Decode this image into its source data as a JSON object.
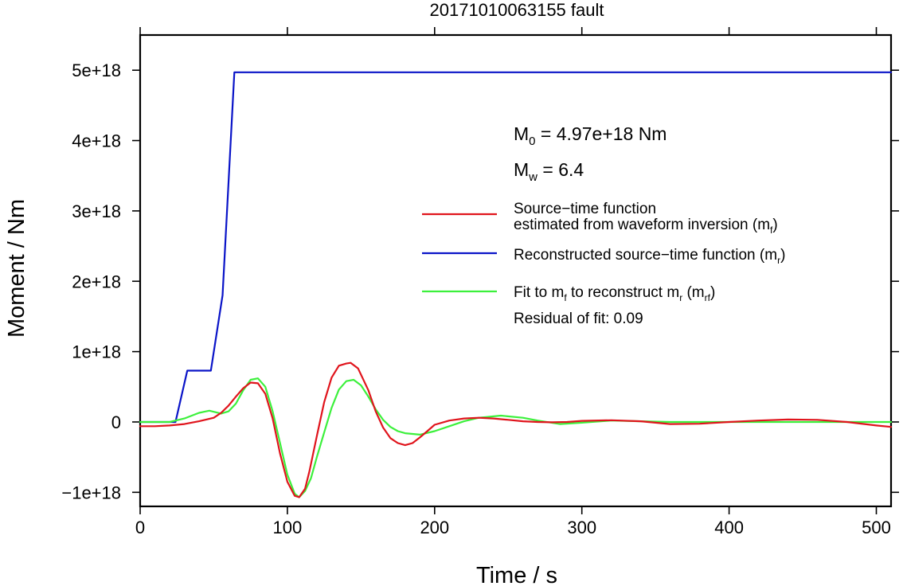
{
  "chart_data": {
    "type": "line",
    "title": "20171010063155 fault",
    "xlabel": "Time / s",
    "ylabel": "Moment / Nm",
    "xlim": [
      0,
      510
    ],
    "ylim": [
      -1.2e+18,
      5.5e+18
    ],
    "xticks": [
      0,
      100,
      200,
      300,
      400,
      500
    ],
    "xtick_labels": [
      "0",
      "100",
      "200",
      "300",
      "400",
      "500"
    ],
    "yticks": [
      -1e+18,
      0,
      1e+18,
      2e+18,
      3e+18,
      4e+18,
      5e+18
    ],
    "ytick_labels": [
      "−1e+18",
      "0",
      "1e+18",
      "2e+18",
      "3e+18",
      "4e+18",
      "5e+18"
    ],
    "grid": false,
    "legend_position": "right",
    "annotations": {
      "m0": {
        "symbol": "M",
        "sub": "0",
        "text": " = 4.97e+18 Nm"
      },
      "mw": {
        "symbol": "M",
        "sub": "w",
        "text": " = 6.4"
      },
      "residual": "Residual of fit: 0.09"
    },
    "series": [
      {
        "name_line1": "Source−time function",
        "name_line2": "estimated from waveform inversion (m",
        "name_sub": "f",
        "name_tail": ")",
        "color": "#e0141c",
        "x": [
          0,
          10,
          20,
          30,
          40,
          50,
          55,
          60,
          65,
          70,
          75,
          80,
          85,
          90,
          95,
          100,
          105,
          108,
          112,
          115,
          120,
          125,
          130,
          135,
          140,
          143,
          148,
          155,
          160,
          165,
          170,
          175,
          180,
          185,
          190,
          195,
          200,
          210,
          220,
          230,
          240,
          250,
          260,
          270,
          280,
          290,
          300,
          320,
          340,
          360,
          380,
          400,
          420,
          440,
          460,
          480,
          500,
          510
        ],
        "y": [
          -6e+16,
          -6e+16,
          -5e+16,
          -3e+16,
          1e+16,
          6e+16,
          1.3e+17,
          2.3e+17,
          3.6e+17,
          4.8e+17,
          5.6e+17,
          5.5e+17,
          4e+17,
          5e+16,
          -4.5e+17,
          -8.5e+17,
          -1.05e+18,
          -1.07e+18,
          -9.5e+17,
          -7e+17,
          -2e+17,
          2.8e+17,
          6.3e+17,
          8e+17,
          8.3e+17,
          8.4e+17,
          7.6e+17,
          4.5e+17,
          1.5e+17,
          -8e+16,
          -2.3e+17,
          -3e+17,
          -3.3e+17,
          -3e+17,
          -2.2e+17,
          -1.3e+17,
          -4e+16,
          2e+16,
          5e+16,
          6e+16,
          5e+16,
          3e+16,
          1e+16,
          0,
          -5000000000000000.0,
          0,
          1.5e+16,
          2.5e+16,
          1e+16,
          -3e+16,
          -2.5e+16,
          0,
          2e+16,
          3.5e+16,
          3e+16,
          0,
          -5e+16,
          -7e+16
        ]
      },
      {
        "name_line1": "Reconstructed source−time function (m",
        "name_sub": "r",
        "name_tail": ")",
        "color": "#0a14c8",
        "x": [
          0,
          24,
          32,
          48,
          56,
          64,
          510
        ],
        "y": [
          0,
          0,
          7.3e+17,
          7.3e+17,
          1.8e+18,
          4.97e+18,
          4.97e+18
        ]
      },
      {
        "name_line1": "Fit to m",
        "name_sub1": "f",
        "name_mid": " to reconstruct m",
        "name_sub2": "rf",
        "name_pre": "r (m",
        "name_tail": ")",
        "color": "#3cf03c",
        "x": [
          0,
          20,
          30,
          40,
          47,
          55,
          60,
          65,
          70,
          75,
          80,
          85,
          90,
          95,
          100,
          105,
          108,
          112,
          116,
          120,
          125,
          130,
          135,
          140,
          145,
          150,
          155,
          160,
          165,
          170,
          175,
          180,
          190,
          200,
          210,
          220,
          230,
          245,
          260,
          270,
          285,
          300,
          320,
          340,
          360,
          380,
          400,
          420,
          440,
          460,
          480,
          500,
          510
        ],
        "y": [
          0,
          0,
          5e+16,
          1.3e+17,
          1.6e+17,
          1.2e+17,
          1.5e+17,
          2.6e+17,
          4.5e+17,
          6e+17,
          6.2e+17,
          5e+17,
          1.5e+17,
          -3e+17,
          -7.5e+17,
          -1.02e+18,
          -1.07e+18,
          -9.8e+17,
          -8e+17,
          -5e+17,
          -1.5e+17,
          2e+17,
          4.6e+17,
          5.8e+17,
          6e+17,
          5.2e+17,
          3.6e+17,
          1.8e+17,
          3e+16,
          -7e+16,
          -1.3e+17,
          -1.6e+17,
          -1.8e+17,
          -1.3e+17,
          -6e+16,
          1e+16,
          6e+16,
          9e+16,
          6e+16,
          2e+16,
          -3e+16,
          -1e+16,
          2e+16,
          1e+16,
          0,
          0,
          0,
          0,
          0,
          0,
          0,
          0,
          0
        ]
      }
    ]
  }
}
